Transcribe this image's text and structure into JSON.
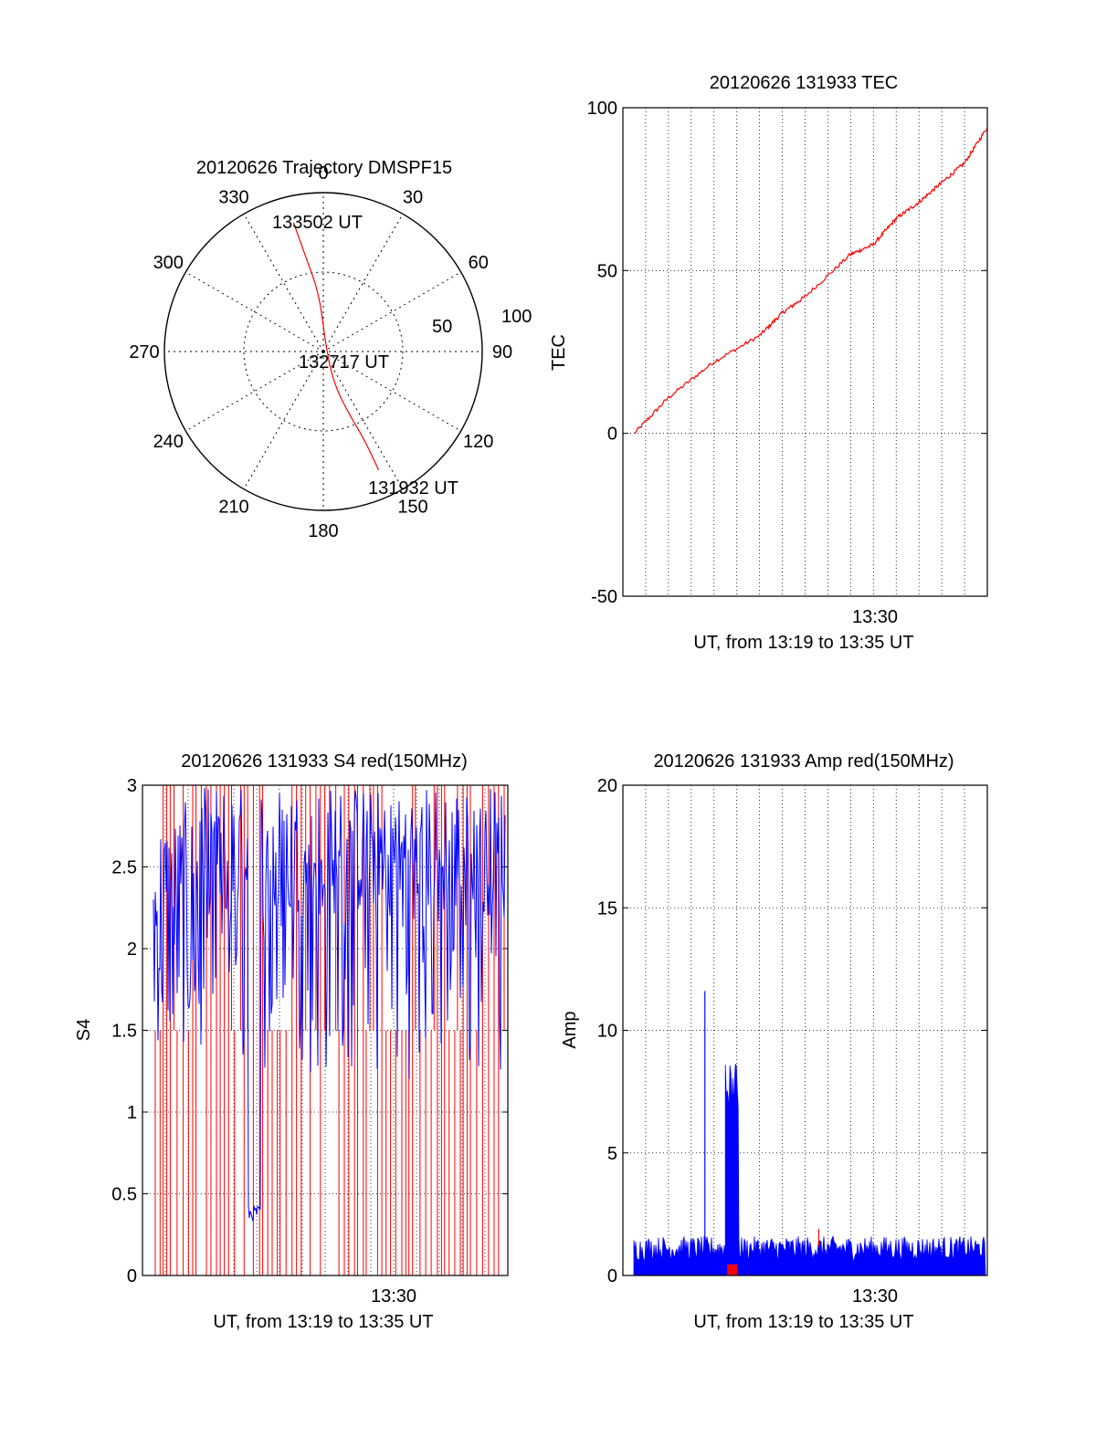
{
  "colors": {
    "series_a": "#ff0000",
    "series_b": "#0000ff",
    "axis": "#000000",
    "grid": "#000000",
    "background": "#ffffff"
  },
  "chart_data": [
    {
      "id": "trajectory",
      "type": "polar",
      "title": "20120626 Trajectory DMSPF15",
      "azimuth_labels": [
        "0",
        "30",
        "60",
        "90",
        "120",
        "150",
        "180",
        "210",
        "240",
        "270",
        "300",
        "330"
      ],
      "radial_axis": {
        "center_elevation": 90,
        "edge_elevation": 0,
        "ring_labels": [
          "50",
          "100"
        ]
      },
      "grid": true,
      "series": [
        {
          "color": "red",
          "points": [
            {
              "time": "133502 UT",
              "azimuth": -13,
              "elevation": 15
            },
            {
              "azimuth": -11,
              "elevation": 33
            },
            {
              "azimuth": -4,
              "elevation": 57
            },
            {
              "time": "132717 UT",
              "azimuth": 13,
              "elevation": 85
            },
            {
              "azimuth": 162,
              "elevation": 72
            },
            {
              "azimuth": 158,
              "elevation": 53
            },
            {
              "azimuth": 155,
              "elevation": 35
            },
            {
              "time": "131932 UT",
              "azimuth": 155,
              "elevation": 16
            }
          ]
        }
      ],
      "annotations": [
        "133502 UT",
        "132717 UT",
        "131932 UT"
      ]
    },
    {
      "id": "tec",
      "type": "line",
      "title": "20120626 131933 TEC",
      "ylabel": "TEC",
      "xlabel": "UT, from 13:19 to 13:35 UT",
      "xtick_label": "13:30",
      "xlim_minutes": [
        0,
        16
      ],
      "ylim": [
        -50,
        100
      ],
      "yticks": [
        "-50",
        "0",
        "50",
        "100"
      ],
      "grid": true,
      "series": [
        {
          "color": "red",
          "x": [
            0.5,
            2,
            4,
            6,
            7,
            8,
            10,
            11,
            12,
            13,
            14,
            15,
            16
          ],
          "y": [
            0,
            11,
            22,
            30,
            37,
            42,
            55,
            58,
            66,
            71,
            77,
            83,
            94
          ]
        }
      ]
    },
    {
      "id": "s4",
      "type": "line",
      "title": "20120626 131933 S4 red(150MHz)",
      "ylabel": "S4",
      "xlabel": "UT, from 13:19 to 13:35 UT",
      "xtick_label": "13:30",
      "xlim_minutes": [
        0,
        16
      ],
      "ylim": [
        0,
        3
      ],
      "yticks": [
        "0",
        "0.5",
        "1",
        "1.5",
        "2",
        "2.5",
        "3"
      ],
      "grid": true,
      "series": [
        {
          "color": "red",
          "description_values": {
            "baseline": 1.5,
            "range": [
              0,
              3
            ]
          }
        },
        {
          "color": "blue",
          "description_values": {
            "range": [
              0.35,
              3
            ],
            "dip_at_minutes": 4.8,
            "dip_value": 0.38
          }
        }
      ]
    },
    {
      "id": "amp",
      "type": "line",
      "title": "20120626 131933 Amp red(150MHz)",
      "ylabel": "Amp",
      "xlabel": "UT, from 13:19 to 13:35 UT",
      "xtick_label": "13:30",
      "xlim_minutes": [
        0,
        16
      ],
      "ylim": [
        0,
        20
      ],
      "yticks": [
        "0",
        "5",
        "10",
        "15",
        "20"
      ],
      "grid": true,
      "series": [
        {
          "color": "blue",
          "noise_level": 1.3,
          "spike": {
            "minute": 3.6,
            "value": 11.6
          },
          "burst": {
            "start": 4.5,
            "end": 5.1,
            "peak": 8.7
          }
        },
        {
          "color": "red",
          "values_near": 0.3,
          "spike": {
            "minute": 8.6,
            "value": 1.9
          }
        }
      ]
    }
  ]
}
